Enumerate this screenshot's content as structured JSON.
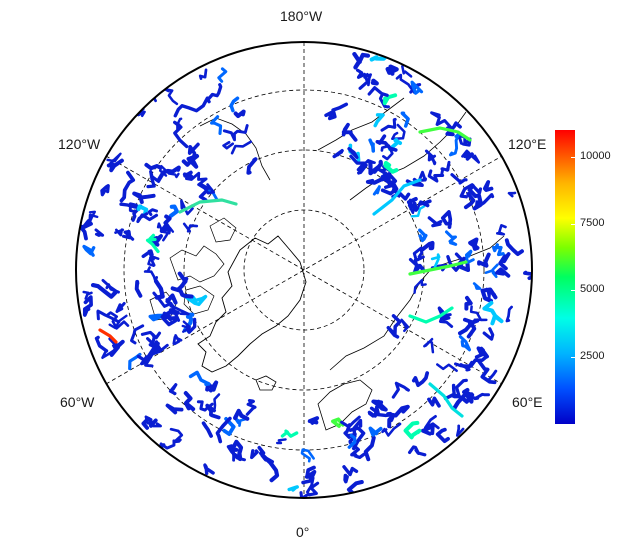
{
  "map": {
    "projection": "north-polar-stereographic",
    "longitude_labels": {
      "top": "180°W",
      "bottom": "0°",
      "upper_left": "120°W",
      "upper_right": "120°E",
      "lower_left": "60°W",
      "lower_right": "60°E"
    },
    "colors": {
      "land_outline": "#000000",
      "grid": "#000000",
      "river_low": "#0000c8",
      "river_high": "#ff0000"
    }
  },
  "legend": {
    "ticks": [
      "10000",
      "7500",
      "5000",
      "2500"
    ],
    "tick_values": [
      10000,
      7500,
      5000,
      2500
    ],
    "min": 0,
    "max": 11000
  }
}
